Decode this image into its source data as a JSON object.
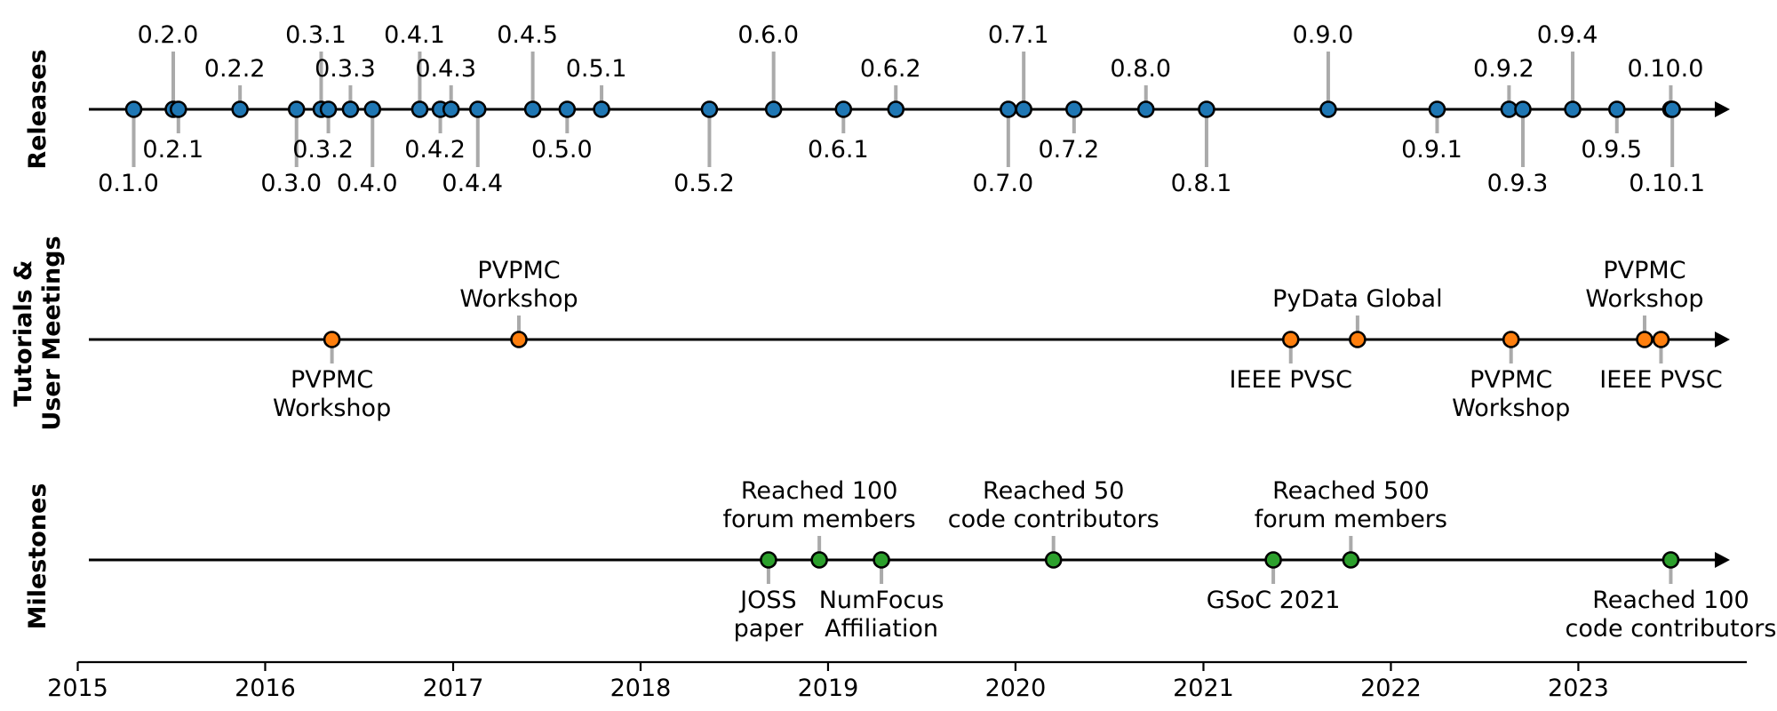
{
  "chart_data": {
    "type": "timeline",
    "xlim": [
      "2015-01-01",
      "2023-11-25"
    ],
    "ticks": [
      {
        "label": "2015",
        "date": "2015-01-01"
      },
      {
        "label": "2016",
        "date": "2016-01-01"
      },
      {
        "label": "2017",
        "date": "2017-01-01"
      },
      {
        "label": "2018",
        "date": "2018-01-01"
      },
      {
        "label": "2019",
        "date": "2019-01-01"
      },
      {
        "label": "2020",
        "date": "2020-01-01"
      },
      {
        "label": "2021",
        "date": "2021-01-01"
      },
      {
        "label": "2022",
        "date": "2022-01-01"
      },
      {
        "label": "2023",
        "date": "2023-01-01"
      }
    ],
    "rows": [
      {
        "title": [
          "Releases"
        ],
        "color": "#1f77b4",
        "events": [
          {
            "label": [
              "0.1.0"
            ],
            "date": "2015-04-20",
            "side": "below",
            "level": 2
          },
          {
            "label": [
              "0.2.0"
            ],
            "date": "2015-07-06",
            "side": "above",
            "level": 2
          },
          {
            "label": [
              "0.2.1"
            ],
            "date": "2015-07-16",
            "side": "below",
            "level": 1
          },
          {
            "label": [
              "0.2.2"
            ],
            "date": "2015-11-13",
            "side": "above",
            "level": 1
          },
          {
            "label": [
              "0.3.0"
            ],
            "date": "2016-03-02",
            "side": "below",
            "level": 2
          },
          {
            "label": [
              "0.3.1"
            ],
            "date": "2016-04-19",
            "side": "above",
            "level": 2
          },
          {
            "label": [
              "0.3.2"
            ],
            "date": "2016-05-03",
            "side": "below",
            "level": 1
          },
          {
            "label": [
              "0.3.3"
            ],
            "date": "2016-06-15",
            "side": "above",
            "level": 1
          },
          {
            "label": [
              "0.4.0"
            ],
            "date": "2016-07-28",
            "side": "below",
            "level": 2
          },
          {
            "label": [
              "0.4.1"
            ],
            "date": "2016-10-28",
            "side": "above",
            "level": 2
          },
          {
            "label": [
              "0.4.2"
            ],
            "date": "2016-12-07",
            "side": "below",
            "level": 1
          },
          {
            "label": [
              "0.4.3"
            ],
            "date": "2016-12-28",
            "side": "above",
            "level": 1
          },
          {
            "label": [
              "0.4.4"
            ],
            "date": "2017-02-18",
            "side": "below",
            "level": 2
          },
          {
            "label": [
              "0.4.5"
            ],
            "date": "2017-06-05",
            "side": "above",
            "level": 2
          },
          {
            "label": [
              "0.5.0"
            ],
            "date": "2017-08-11",
            "side": "below",
            "level": 1
          },
          {
            "label": [
              "0.5.1"
            ],
            "date": "2017-10-17",
            "side": "above",
            "level": 1
          },
          {
            "label": [
              "0.5.2"
            ],
            "date": "2018-05-15",
            "side": "below",
            "level": 2
          },
          {
            "label": [
              "0.6.0"
            ],
            "date": "2018-09-17",
            "side": "above",
            "level": 2
          },
          {
            "label": [
              "0.6.1"
            ],
            "date": "2019-01-31",
            "side": "below",
            "level": 1
          },
          {
            "label": [
              "0.6.2"
            ],
            "date": "2019-05-13",
            "side": "above",
            "level": 1
          },
          {
            "label": [
              "0.7.0"
            ],
            "date": "2019-12-18",
            "side": "below",
            "level": 2
          },
          {
            "label": [
              "0.7.1"
            ],
            "date": "2020-01-17",
            "side": "above",
            "level": 2
          },
          {
            "label": [
              "0.7.2"
            ],
            "date": "2020-04-24",
            "side": "below",
            "level": 1
          },
          {
            "label": [
              "0.8.0"
            ],
            "date": "2020-09-11",
            "side": "above",
            "level": 1
          },
          {
            "label": [
              "0.8.1"
            ],
            "date": "2021-01-07",
            "side": "below",
            "level": 2
          },
          {
            "label": [
              "0.9.0"
            ],
            "date": "2021-09-01",
            "side": "above",
            "level": 2
          },
          {
            "label": [
              "0.9.1"
            ],
            "date": "2022-04-01",
            "side": "below",
            "level": 1
          },
          {
            "label": [
              "0.9.2"
            ],
            "date": "2022-08-19",
            "side": "above",
            "level": 1
          },
          {
            "label": [
              "0.9.3"
            ],
            "date": "2022-09-15",
            "side": "below",
            "level": 2
          },
          {
            "label": [
              "0.9.4"
            ],
            "date": "2022-12-21",
            "side": "above",
            "level": 2
          },
          {
            "label": [
              "0.9.5"
            ],
            "date": "2023-03-17",
            "side": "below",
            "level": 1
          },
          {
            "label": [
              "0.10.0"
            ],
            "date": "2023-06-30",
            "side": "above",
            "level": 1
          },
          {
            "label": [
              "0.10.1"
            ],
            "date": "2023-07-03",
            "side": "below",
            "level": 2
          }
        ]
      },
      {
        "title": [
          "Tutorials &",
          "User Meetings"
        ],
        "color": "#ff7f0e",
        "events": [
          {
            "label": [
              "PVPMC",
              "Workshop"
            ],
            "date": "2016-05-10",
            "side": "below",
            "level": 1
          },
          {
            "label": [
              "PVPMC",
              "Workshop"
            ],
            "date": "2017-05-09",
            "side": "above",
            "level": 1
          },
          {
            "label": [
              "IEEE PVSC"
            ],
            "date": "2021-06-20",
            "side": "below",
            "level": 1
          },
          {
            "label": [
              "PyData Global"
            ],
            "date": "2021-10-28",
            "side": "above",
            "level": 1
          },
          {
            "label": [
              "PVPMC",
              "Workshop"
            ],
            "date": "2022-08-23",
            "side": "below",
            "level": 1
          },
          {
            "label": [
              "PVPMC",
              "Workshop"
            ],
            "date": "2023-05-10",
            "side": "above",
            "level": 1
          },
          {
            "label": [
              "IEEE PVSC"
            ],
            "date": "2023-06-11",
            "side": "below",
            "level": 1
          }
        ]
      },
      {
        "title": [
          "Milestones"
        ],
        "color": "#2ca02c",
        "events": [
          {
            "label": [
              "JOSS",
              "paper"
            ],
            "date": "2018-09-07",
            "side": "below",
            "level": 1
          },
          {
            "label": [
              "Reached 100",
              "forum members"
            ],
            "date": "2018-12-15",
            "side": "above",
            "level": 1
          },
          {
            "label": [
              "NumFocus",
              "Affiliation"
            ],
            "date": "2019-04-15",
            "side": "below",
            "level": 1
          },
          {
            "label": [
              "Reached 50",
              "code contributors"
            ],
            "date": "2020-03-15",
            "side": "above",
            "level": 1
          },
          {
            "label": [
              "GSoC 2021"
            ],
            "date": "2021-05-17",
            "side": "below",
            "level": 1
          },
          {
            "label": [
              "Reached 500",
              "forum members"
            ],
            "date": "2021-10-15",
            "side": "above",
            "level": 1
          },
          {
            "label": [
              "Reached 100",
              "code contributors"
            ],
            "date": "2023-06-30",
            "side": "below",
            "level": 1
          }
        ]
      }
    ]
  }
}
